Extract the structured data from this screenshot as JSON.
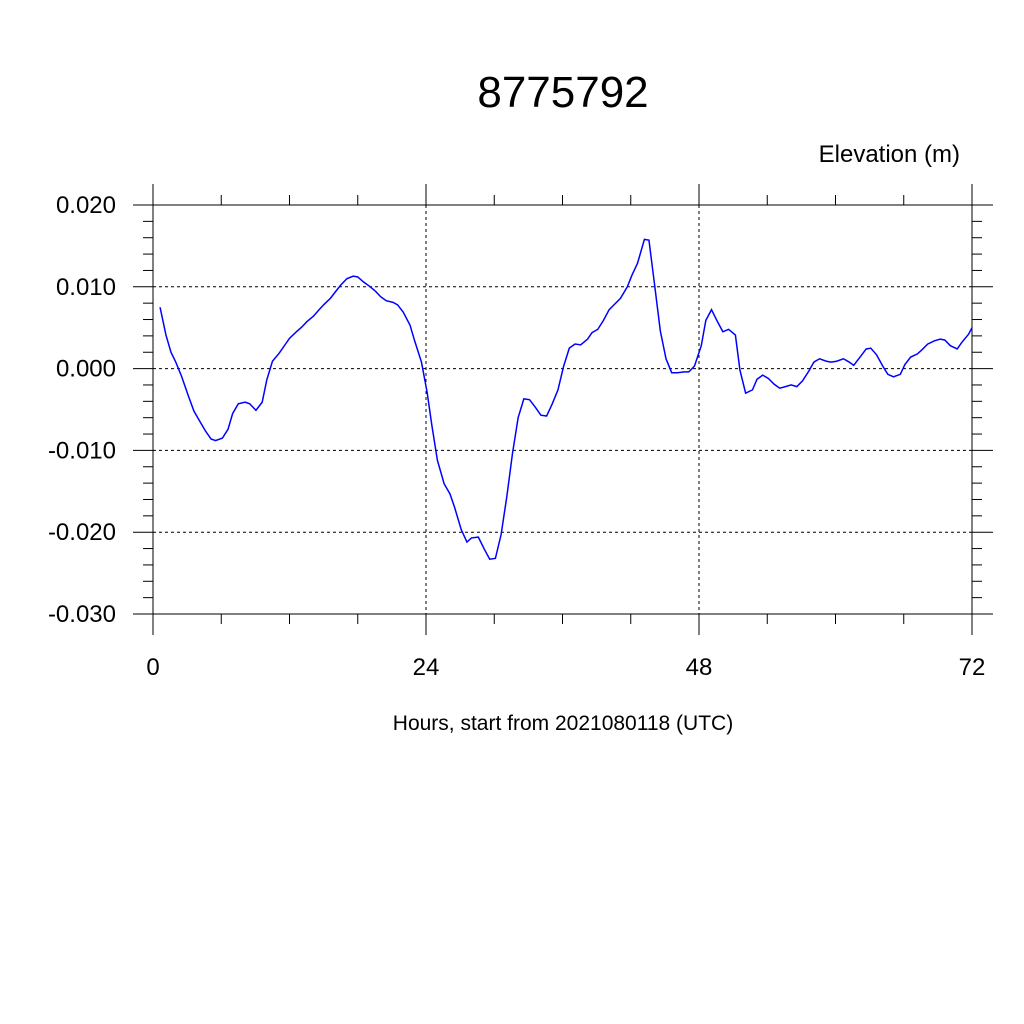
{
  "chart_data": {
    "type": "line",
    "title": "8775792",
    "subtitle": "Elevation (m)",
    "x_label": "Hours, start from 2021080118 (UTC)",
    "xlim": [
      0,
      72
    ],
    "ylim": [
      -0.03,
      0.02
    ],
    "xticks": [
      0,
      24,
      48,
      72
    ],
    "xminorticks": [
      6,
      12,
      18,
      30,
      36,
      42,
      54,
      60,
      66
    ],
    "yticks": [
      {
        "value": -0.03,
        "label": "-0.030"
      },
      {
        "value": -0.02,
        "label": "-0.020"
      },
      {
        "value": -0.01,
        "label": "-0.010"
      },
      {
        "value": 0,
        "label": "0.000"
      },
      {
        "value": 0.01,
        "label": "0.010"
      },
      {
        "value": 0.02,
        "label": "0.020"
      }
    ],
    "yminorticks": [
      -0.028,
      -0.026,
      -0.024,
      -0.022,
      -0.018,
      -0.016,
      -0.014,
      -0.012,
      -0.008,
      -0.006,
      -0.004,
      -0.002,
      0.002,
      0.004,
      0.006,
      0.008,
      0.012,
      0.014,
      0.016,
      0.018
    ],
    "grid": true,
    "x": [
      0.62,
      1.14,
      1.58,
      2.0,
      2.5,
      3.1,
      3.6,
      4.1,
      4.6,
      5.1,
      5.5,
      6.1,
      6.6,
      7.0,
      7.5,
      8.1,
      8.5,
      9.05,
      9.6,
      10.0,
      10.5,
      11.1,
      11.6,
      12.0,
      12.6,
      13.1,
      13.5,
      14.1,
      14.6,
      15.0,
      15.6,
      16.1,
      16.5,
      17.05,
      17.6,
      18.0,
      18.5,
      19.1,
      19.6,
      20.0,
      20.5,
      21.1,
      21.5,
      22.0,
      22.6,
      23.0,
      23.6,
      24.1,
      24.5,
      25.0,
      25.6,
      26.1,
      26.5,
      27.1,
      27.6,
      28.0,
      28.6,
      29.1,
      29.6,
      30.1,
      30.6,
      31.1,
      31.6,
      32.1,
      32.6,
      33.1,
      33.6,
      34.1,
      34.6,
      35.1,
      35.6,
      36.1,
      36.6,
      37.1,
      37.6,
      38.2,
      38.6,
      39.1,
      39.6,
      40.1,
      40.6,
      41.1,
      41.7,
      42.1,
      42.6,
      43.2,
      43.6,
      44.1,
      44.6,
      45.1,
      45.6,
      46.1,
      46.7,
      47.1,
      47.6,
      48.2,
      48.6,
      49.1,
      49.6,
      50.1,
      50.6,
      51.2,
      51.6,
      52.1,
      52.7,
      53.1,
      53.6,
      54.1,
      54.6,
      55.1,
      55.6,
      56.1,
      56.6,
      57.1,
      57.7,
      58.1,
      58.6,
      59.2,
      59.6,
      60.1,
      60.7,
      61.2,
      61.6,
      62.1,
      62.7,
      63.1,
      63.6,
      64.2,
      64.6,
      65.1,
      65.7,
      66.1,
      66.6,
      67.2,
      67.6,
      68.1,
      68.7,
      69.2,
      69.6,
      70.1,
      70.7,
      71.1,
      71.7,
      72.0
    ],
    "series": [
      {
        "name": "Elevation",
        "color": "#0000ff",
        "values": [
          0.0075,
          0.0041,
          0.002,
          0.0008,
          -0.0009,
          -0.0033,
          -0.0052,
          -0.0064,
          -0.0076,
          -0.0086,
          -0.0088,
          -0.0085,
          -0.0074,
          -0.0055,
          -0.0043,
          -0.0041,
          -0.0043,
          -0.0051,
          -0.0041,
          -0.0014,
          0.0009,
          0.0019,
          0.0029,
          0.0037,
          0.0045,
          0.0051,
          0.0057,
          0.0064,
          0.0072,
          0.0078,
          0.0086,
          0.0095,
          0.0102,
          0.011,
          0.0113,
          0.0112,
          0.0106,
          0.01,
          0.0094,
          0.0088,
          0.0083,
          0.0081,
          0.0078,
          0.0069,
          0.0053,
          0.0034,
          0.0008,
          -0.0029,
          -0.0068,
          -0.0112,
          -0.0141,
          -0.0153,
          -0.0169,
          -0.0197,
          -0.0212,
          -0.0207,
          -0.0206,
          -0.022,
          -0.0233,
          -0.0232,
          -0.0203,
          -0.0157,
          -0.0104,
          -0.006,
          -0.0037,
          -0.0038,
          -0.0047,
          -0.0057,
          -0.0058,
          -0.0043,
          -0.0026,
          0.0003,
          0.0025,
          0.003,
          0.0029,
          0.0036,
          0.0044,
          0.0048,
          0.0059,
          0.0072,
          0.0079,
          0.0086,
          0.01,
          0.0114,
          0.0129,
          0.0158,
          0.0157,
          0.0102,
          0.0046,
          0.0012,
          -0.0005,
          -0.0005,
          -0.0004,
          -0.0004,
          0.0003,
          0.0028,
          0.0059,
          0.0072,
          0.0058,
          0.0045,
          0.0048,
          0.0041,
          -0.0002,
          -0.003,
          -0.0026,
          -0.0013,
          -0.0008,
          -0.0012,
          -0.0019,
          -0.0024,
          -0.0022,
          -0.002,
          -0.0022,
          -0.0015,
          -0.0002,
          0.0008,
          0.0012,
          0.0009,
          0.0008,
          0.0009,
          0.0012,
          0.0008,
          0.0004,
          0.0013,
          0.0024,
          0.0025,
          0.0017,
          0.0002,
          -0.0007,
          -0.001,
          -0.0007,
          0.0005,
          0.0014,
          0.0018,
          0.0023,
          0.003,
          0.0034,
          0.0036,
          0.0035,
          0.0028,
          0.0024,
          0.0032,
          0.0042,
          0.005
        ]
      }
    ]
  }
}
